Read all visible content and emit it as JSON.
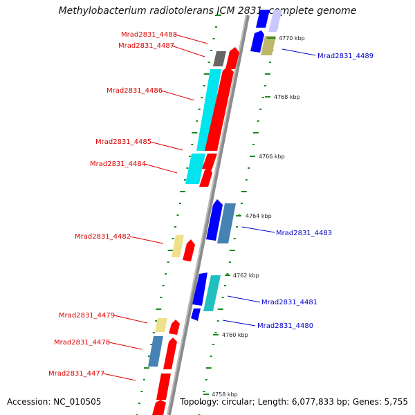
{
  "title": "Methylobacterium radiotolerans JCM 2831, complete genome",
  "footer": {
    "accession": "Accession: NC_010505",
    "summary": "Topology: circular; Length: 6,077,833 bp; Genes: 5,755"
  },
  "colors": {
    "reverse_label": "#dd0000",
    "forward_label": "#0000cc",
    "backbone": "#8c8c8c",
    "tick": "#1a8a1a"
  },
  "scale_labels": [
    "4770 kbp",
    "4768 kbp",
    "4766 kbp",
    "4764 kbp",
    "4762 kbp",
    "4760 kbp",
    "4758 kbp"
  ],
  "genes_reverse": [
    {
      "name": "Mrad2831_4488",
      "color": "#666666"
    },
    {
      "name": "Mrad2831_4487",
      "color": "#ff0000"
    },
    {
      "name": "Mrad2831_4486",
      "color": "#00e5ee"
    },
    {
      "name": "Mrad2831_4485",
      "color": "#ff0000"
    },
    {
      "name": "Mrad2831_4484",
      "color": "#00e5ee"
    },
    {
      "name": "Mrad2831_4482",
      "color": "#eee08c"
    },
    {
      "name": "Mrad2831_4479",
      "color": "#eee08c"
    },
    {
      "name": "Mrad2831_4478",
      "color": "#4682b4"
    },
    {
      "name": "Mrad2831_4477",
      "color": "#ff0000"
    }
  ],
  "genes_forward": [
    {
      "name": "Mrad2831_4489",
      "color": "#bdb76b"
    },
    {
      "name": "Mrad2831_4483",
      "color": "#4682b4"
    },
    {
      "name": "Mrad2831_4481",
      "color": "#20c0c0"
    },
    {
      "name": "Mrad2831_4480",
      "color": "#0000ff"
    }
  ]
}
